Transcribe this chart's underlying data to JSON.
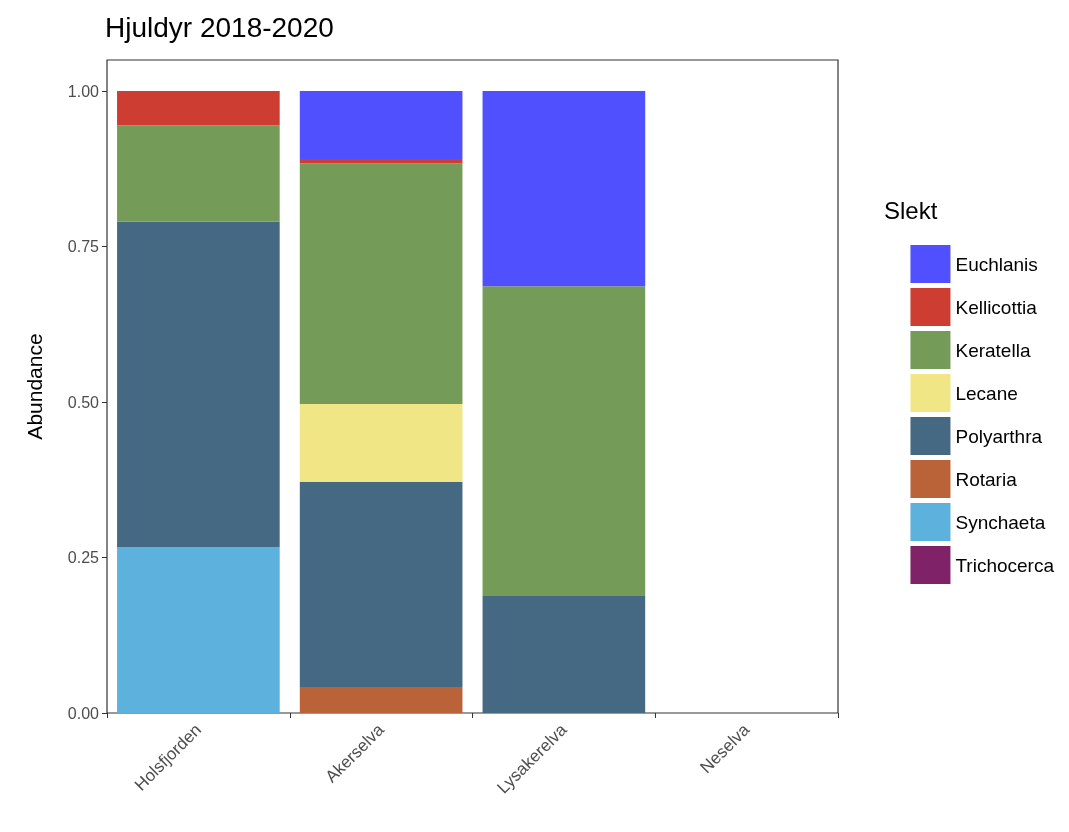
{
  "chart_data": {
    "type": "bar",
    "title": "Hjuldyr 2018-2020",
    "ylabel": "Abundance",
    "legend_title": "Slekt",
    "stacked": true,
    "grid": false,
    "legend": "right",
    "categories": [
      "Holsfjorden",
      "Akerselva",
      "Lysakerelva",
      "Neselva"
    ],
    "ylim": [
      0,
      1.05
    ],
    "yticks": [
      {
        "value": 0,
        "label": "0.00"
      },
      {
        "value": 0.25,
        "label": "0.25"
      },
      {
        "value": 0.5,
        "label": "0.50"
      },
      {
        "value": 0.75,
        "label": "0.75"
      },
      {
        "value": 1,
        "label": "1.00"
      }
    ],
    "series": [
      {
        "name": "Trichocerca",
        "color": "#802268",
        "values": [
          0,
          0,
          0,
          0
        ]
      },
      {
        "name": "Synchaeta",
        "color": "#5db1dd",
        "values": [
          0.267,
          0,
          0,
          0
        ]
      },
      {
        "name": "Rotaria",
        "color": "#ba6338",
        "values": [
          0,
          0.042,
          0,
          0
        ]
      },
      {
        "name": "Polyarthra",
        "color": "#466983",
        "values": [
          0.523,
          0.33,
          0.188,
          0
        ]
      },
      {
        "name": "Lecane",
        "color": "#f0e685",
        "values": [
          0,
          0.125,
          0,
          0
        ]
      },
      {
        "name": "Keratella",
        "color": "#749b58",
        "values": [
          0.155,
          0.387,
          0.498,
          0
        ]
      },
      {
        "name": "Kellicottia",
        "color": "#ce3d32",
        "values": [
          0.055,
          0.007,
          0,
          0
        ]
      },
      {
        "name": "Euchlanis",
        "color": "#5050ff",
        "values": [
          0,
          0.109,
          0.314,
          0
        ]
      }
    ]
  }
}
